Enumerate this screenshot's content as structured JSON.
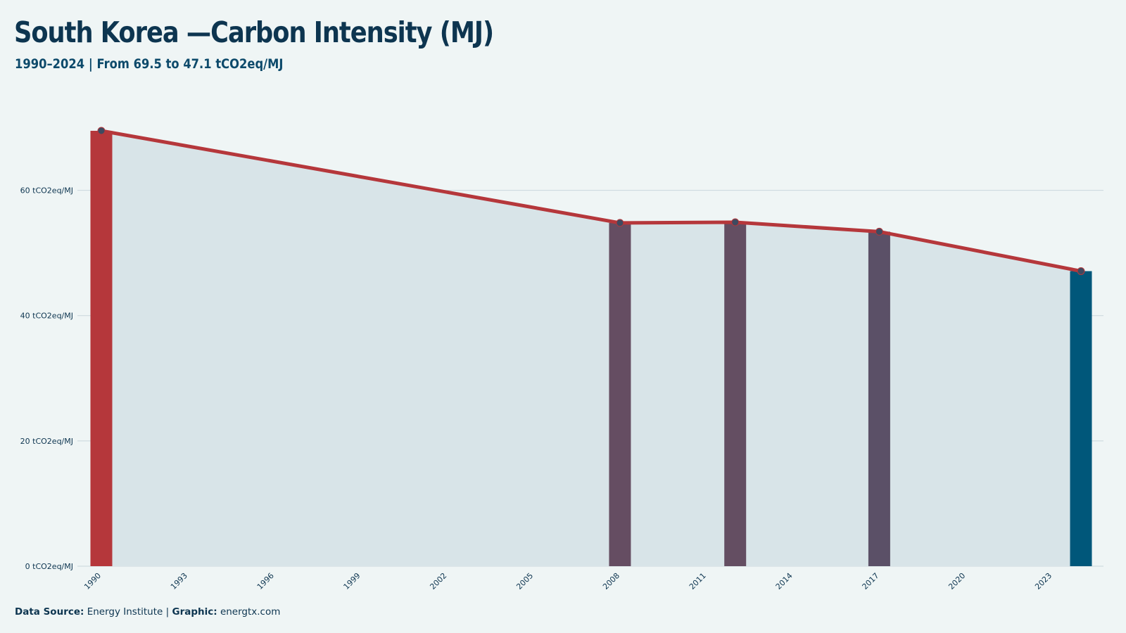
{
  "header": {
    "title": "South Korea —Carbon Intensity (MJ)",
    "subtitle": "1990–2024 | From 69.5 to 47.1 tCO2eq/MJ"
  },
  "footer": {
    "source_label": "Data Source:",
    "source_value": "Energy Institute",
    "separator": "|",
    "graphic_label": "Graphic:",
    "graphic_value": "energtx.com"
  },
  "colors": {
    "background": "#eff5f5",
    "area_fill": "#d8e4e8",
    "line": "#b5373b",
    "gridline": "#c9d6dc",
    "bar_start": "#b5373b",
    "bar_mid_1": "#654d62",
    "bar_mid_2": "#644e62",
    "bar_mid_3": "#5b5067",
    "bar_end": "#00577a",
    "marker_fill": "#3e4a60",
    "text": "#0d3550"
  },
  "chart_data": {
    "type": "area",
    "title": "South Korea —Carbon Intensity (MJ)",
    "subtitle": "1990–2024 | From 69.5 to 47.1 tCO2eq/MJ",
    "xlabel": "",
    "ylabel": "",
    "unit": "tCO2eq/MJ",
    "x_range": [
      1990,
      2024
    ],
    "ylim": [
      0,
      75
    ],
    "y_ticks": [
      0,
      20,
      40,
      60
    ],
    "y_tick_labels": [
      "0 tCO2eq/MJ",
      "20 tCO2eq/MJ",
      "40 tCO2eq/MJ",
      "60 tCO2eq/MJ"
    ],
    "x_ticks": [
      1990,
      1993,
      1996,
      1999,
      2002,
      2005,
      2008,
      2011,
      2014,
      2017,
      2020,
      2023
    ],
    "x_tick_labels": [
      "1990",
      "1993",
      "1996",
      "1999",
      "2002",
      "2005",
      "2008",
      "2011",
      "2014",
      "2017",
      "2020",
      "2023"
    ],
    "grid": true,
    "legend": "none",
    "series": [
      {
        "points": [
          {
            "x": 1990,
            "y": 69.5
          },
          {
            "x": 2008,
            "y": 54.8
          },
          {
            "x": 2012,
            "y": 54.9
          },
          {
            "x": 2017,
            "y": 53.4
          },
          {
            "x": 2024,
            "y": 47.1
          }
        ]
      }
    ],
    "highlight_bars": [
      {
        "x": 1990,
        "y": 69.5,
        "color": "#b5373b"
      },
      {
        "x": 2008,
        "y": 54.8,
        "color": "#654d62"
      },
      {
        "x": 2012,
        "y": 54.9,
        "color": "#644e62"
      },
      {
        "x": 2017,
        "y": 53.4,
        "color": "#5b5067"
      },
      {
        "x": 2024,
        "y": 47.1,
        "color": "#00577a"
      }
    ]
  }
}
